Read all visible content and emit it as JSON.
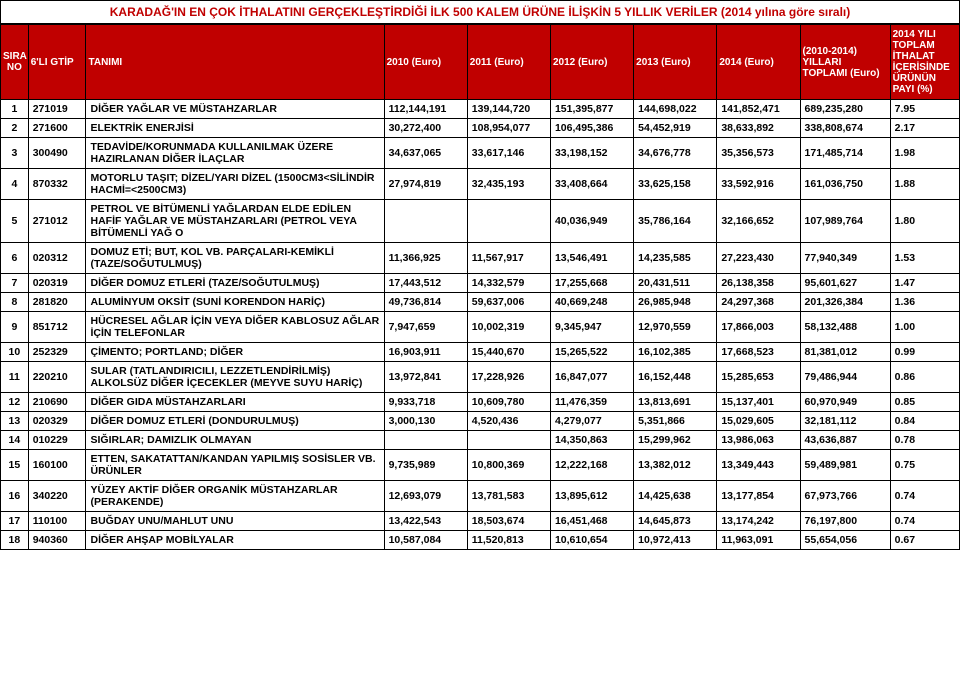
{
  "title": "KARADAĞ'IN EN ÇOK İTHALATINI GERÇEKLEŞTİRDİĞİ İLK 500 KALEM ÜRÜNE İLİŞKİN 5 YILLIK VERİLER (2014 yılına göre sıralı)",
  "headers": {
    "sira": "SIRA NO",
    "gtip": "6'LI GTİP",
    "tanim": "TANIMI",
    "y2010": "2010 (Euro)",
    "y2011": "2011 (Euro)",
    "y2012": "2012 (Euro)",
    "y2013": "2013 (Euro)",
    "y2014": "2014 (Euro)",
    "sum": "(2010-2014) YILLARI TOPLAMI (Euro)",
    "pct": "2014 YILI TOPLAM İTHALAT İÇERİSİNDE ÜRÜNÜN PAYI (%)"
  },
  "rows": [
    {
      "sira": "1",
      "gtip": "271019",
      "tanim": "DİĞER YAĞLAR VE MÜSTAHZARLAR",
      "y2010": "112,144,191",
      "y2011": "139,144,720",
      "y2012": "151,395,877",
      "y2013": "144,698,022",
      "y2014": "141,852,471",
      "sum": "689,235,280",
      "pct": "7.95"
    },
    {
      "sira": "2",
      "gtip": "271600",
      "tanim": "ELEKTRİK ENERJİSİ",
      "y2010": "30,272,400",
      "y2011": "108,954,077",
      "y2012": "106,495,386",
      "y2013": "54,452,919",
      "y2014": "38,633,892",
      "sum": "338,808,674",
      "pct": "2.17"
    },
    {
      "sira": "3",
      "gtip": "300490",
      "tanim": "TEDAVİDE/KORUNMADA KULLANILMAK ÜZERE HAZIRLANAN DİĞER İLAÇLAR",
      "y2010": "34,637,065",
      "y2011": "33,617,146",
      "y2012": "33,198,152",
      "y2013": "34,676,778",
      "y2014": "35,356,573",
      "sum": "171,485,714",
      "pct": "1.98"
    },
    {
      "sira": "4",
      "gtip": "870332",
      "tanim": "MOTORLU TAŞIT; DİZEL/YARI DİZEL (1500CM3<SİLİNDİR HACMİ=<2500CM3)",
      "y2010": "27,974,819",
      "y2011": "32,435,193",
      "y2012": "33,408,664",
      "y2013": "33,625,158",
      "y2014": "33,592,916",
      "sum": "161,036,750",
      "pct": "1.88"
    },
    {
      "sira": "5",
      "gtip": "271012",
      "tanim": "PETROL VE BİTÜMENLİ YAĞLARDAN ELDE EDİLEN HAFİF YAĞLAR VE MÜSTAHZARLARI (PETROL VEYA BİTÜMENLİ YAĞ O",
      "y2010": "",
      "y2011": "",
      "y2012": "40,036,949",
      "y2013": "35,786,164",
      "y2014": "32,166,652",
      "sum": "107,989,764",
      "pct": "1.80"
    },
    {
      "sira": "6",
      "gtip": "020312",
      "tanim": "DOMUZ ETİ; BUT, KOL VB. PARÇALARI-KEMİKLİ (TAZE/SOĞUTULMUŞ)",
      "y2010": "11,366,925",
      "y2011": "11,567,917",
      "y2012": "13,546,491",
      "y2013": "14,235,585",
      "y2014": "27,223,430",
      "sum": "77,940,349",
      "pct": "1.53"
    },
    {
      "sira": "7",
      "gtip": "020319",
      "tanim": "DİĞER DOMUZ ETLERİ (TAZE/SOĞUTULMUŞ)",
      "y2010": "17,443,512",
      "y2011": "14,332,579",
      "y2012": "17,255,668",
      "y2013": "20,431,511",
      "y2014": "26,138,358",
      "sum": "95,601,627",
      "pct": "1.47"
    },
    {
      "sira": "8",
      "gtip": "281820",
      "tanim": "ALUMİNYUM OKSİT (SUNİ KORENDON HARİÇ)",
      "y2010": "49,736,814",
      "y2011": "59,637,006",
      "y2012": "40,669,248",
      "y2013": "26,985,948",
      "y2014": "24,297,368",
      "sum": "201,326,384",
      "pct": "1.36"
    },
    {
      "sira": "9",
      "gtip": "851712",
      "tanim": "HÜCRESEL AĞLAR İÇİN VEYA DİĞER KABLOSUZ AĞLAR İÇİN TELEFONLAR",
      "y2010": "7,947,659",
      "y2011": "10,002,319",
      "y2012": "9,345,947",
      "y2013": "12,970,559",
      "y2014": "17,866,003",
      "sum": "58,132,488",
      "pct": "1.00"
    },
    {
      "sira": "10",
      "gtip": "252329",
      "tanim": "ÇİMENTO; PORTLAND; DİĞER",
      "y2010": "16,903,911",
      "y2011": "15,440,670",
      "y2012": "15,265,522",
      "y2013": "16,102,385",
      "y2014": "17,668,523",
      "sum": "81,381,012",
      "pct": "0.99"
    },
    {
      "sira": "11",
      "gtip": "220210",
      "tanim": "SULAR (TATLANDIRICILI, LEZZETLENDİRİLMİŞ) ALKOLSÜZ DİĞER İÇECEKLER (MEYVE SUYU HARİÇ)",
      "y2010": "13,972,841",
      "y2011": "17,228,926",
      "y2012": "16,847,077",
      "y2013": "16,152,448",
      "y2014": "15,285,653",
      "sum": "79,486,944",
      "pct": "0.86"
    },
    {
      "sira": "12",
      "gtip": "210690",
      "tanim": "DİĞER GIDA MÜSTAHZARLARI",
      "y2010": "9,933,718",
      "y2011": "10,609,780",
      "y2012": "11,476,359",
      "y2013": "13,813,691",
      "y2014": "15,137,401",
      "sum": "60,970,949",
      "pct": "0.85"
    },
    {
      "sira": "13",
      "gtip": "020329",
      "tanim": "DİĞER DOMUZ ETLERİ (DONDURULMUŞ)",
      "y2010": "3,000,130",
      "y2011": "4,520,436",
      "y2012": "4,279,077",
      "y2013": "5,351,866",
      "y2014": "15,029,605",
      "sum": "32,181,112",
      "pct": "0.84"
    },
    {
      "sira": "14",
      "gtip": "010229",
      "tanim": "SIĞIRLAR; DAMIZLIK OLMAYAN",
      "y2010": "",
      "y2011": "",
      "y2012": "14,350,863",
      "y2013": "15,299,962",
      "y2014": "13,986,063",
      "sum": "43,636,887",
      "pct": "0.78"
    },
    {
      "sira": "15",
      "gtip": "160100",
      "tanim": "ETTEN, SAKATATTAN/KANDAN YAPILMIŞ SOSİSLER VB. ÜRÜNLER",
      "y2010": "9,735,989",
      "y2011": "10,800,369",
      "y2012": "12,222,168",
      "y2013": "13,382,012",
      "y2014": "13,349,443",
      "sum": "59,489,981",
      "pct": "0.75"
    },
    {
      "sira": "16",
      "gtip": "340220",
      "tanim": "YÜZEY AKTİF DİĞER ORGANİK MÜSTAHZARLAR (PERAKENDE)",
      "y2010": "12,693,079",
      "y2011": "13,781,583",
      "y2012": "13,895,612",
      "y2013": "14,425,638",
      "y2014": "13,177,854",
      "sum": "67,973,766",
      "pct": "0.74"
    },
    {
      "sira": "17",
      "gtip": "110100",
      "tanim": "BUĞDAY UNU/MAHLUT UNU",
      "y2010": "13,422,543",
      "y2011": "18,503,674",
      "y2012": "16,451,468",
      "y2013": "14,645,873",
      "y2014": "13,174,242",
      "sum": "76,197,800",
      "pct": "0.74"
    },
    {
      "sira": "18",
      "gtip": "940360",
      "tanim": "DİĞER AHŞAP MOBİLYALAR",
      "y2010": "10,587,084",
      "y2011": "11,520,813",
      "y2012": "10,610,654",
      "y2013": "10,972,413",
      "y2014": "11,963,091",
      "sum": "55,654,056",
      "pct": "0.67"
    }
  ],
  "style": {
    "header_bg": "#c00000",
    "header_fg": "#ffffff",
    "title_fg": "#c00000",
    "border_color": "#000000",
    "font_family": "Arial",
    "title_fontsize": 12,
    "header_fontsize": 10,
    "cell_fontsize": 10.5
  }
}
